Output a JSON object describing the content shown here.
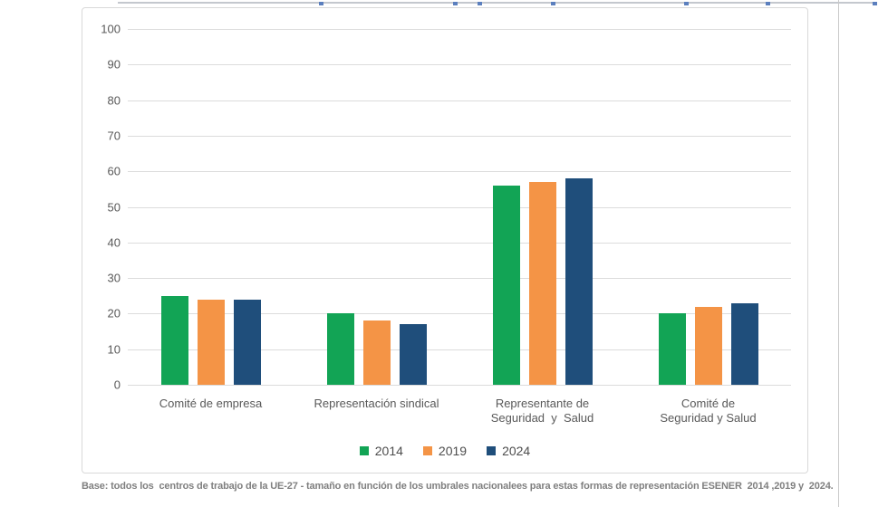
{
  "page": {
    "caption": "Base: todos los  centros de trabajo de la UE-27 - tamaño en función de los umbrales nacionalees para estas formas de representación ESENER  2014 ,2019 y  2024."
  },
  "chart_data": {
    "type": "bar",
    "title": "",
    "categories": [
      "Comité de empresa",
      "Representación sindical",
      "Representante de\nSeguridad  y  Salud",
      "Comité de\nSeguridad y Salud"
    ],
    "series": [
      {
        "name": "2014",
        "color": "#12a455",
        "values": [
          25,
          20,
          56,
          20
        ]
      },
      {
        "name": "2019",
        "color": "#f49446",
        "values": [
          24,
          18,
          57,
          22
        ]
      },
      {
        "name": "2024",
        "color": "#1f4e7b",
        "values": [
          24,
          17,
          58,
          23
        ]
      }
    ],
    "ylabel": "",
    "xlabel": "",
    "ylim": [
      0,
      100
    ],
    "yticks": [
      0,
      10,
      20,
      30,
      40,
      50,
      60,
      70,
      80,
      90,
      100
    ],
    "grid": true,
    "legend_position": "bottom",
    "style_colors": {
      "gridline": "#dcdcdc",
      "axis_text": "#595959",
      "legend_text": "#4d4d4d",
      "caption_text": "#7f7f7f",
      "panel_border": "#d9d9d9"
    }
  }
}
